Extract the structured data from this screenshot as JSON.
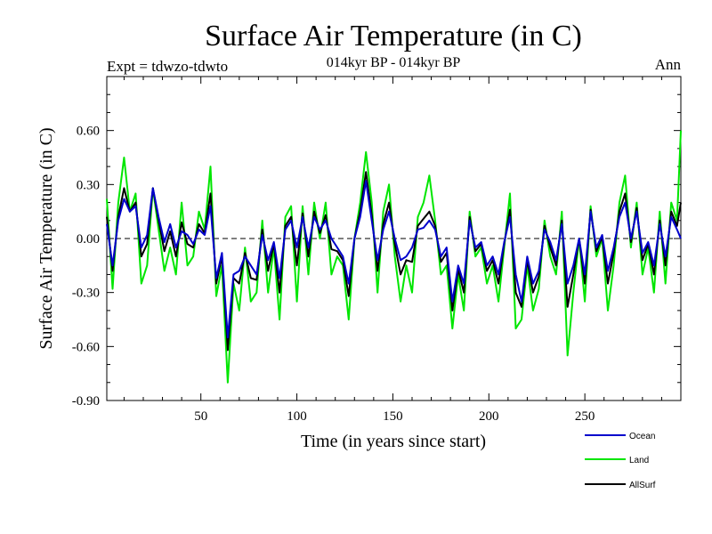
{
  "chart_data": {
    "type": "line",
    "title": "Surface Air Temperature (in C)",
    "subtitle": "014kyr BP - 014kyr BP",
    "top_left_label": "Expt = tdwzo-tdwto",
    "top_right_label": "Ann",
    "xlabel": "Time (in years since start)",
    "ylabel": "Surface Air Temperature (in C)",
    "xlim": [
      1,
      300
    ],
    "ylim": [
      -0.9,
      0.9
    ],
    "x_ticks": [
      50,
      100,
      150,
      200,
      250
    ],
    "x_tick_labels": [
      "50",
      "100",
      "150",
      "200",
      "250"
    ],
    "y_ticks": [
      -0.9,
      -0.6,
      -0.3,
      0.0,
      0.3,
      0.6
    ],
    "y_tick_labels": [
      "-0.90",
      "-0.60",
      "-0.30",
      "0.00",
      "0.30",
      "0.60"
    ],
    "zero_line": true,
    "grid": false,
    "legend_position": "bottom-right",
    "x": [
      1,
      4,
      7,
      10,
      13,
      16,
      19,
      22,
      25,
      28,
      31,
      34,
      37,
      40,
      43,
      46,
      49,
      52,
      55,
      58,
      61,
      64,
      67,
      70,
      73,
      76,
      79,
      82,
      85,
      88,
      91,
      94,
      97,
      100,
      103,
      106,
      109,
      112,
      115,
      118,
      121,
      124,
      127,
      130,
      133,
      136,
      139,
      142,
      145,
      148,
      151,
      154,
      157,
      160,
      163,
      166,
      169,
      172,
      175,
      178,
      181,
      184,
      187,
      190,
      193,
      196,
      199,
      202,
      205,
      208,
      211,
      214,
      217,
      220,
      223,
      226,
      229,
      232,
      235,
      238,
      241,
      244,
      247,
      250,
      253,
      256,
      259,
      262,
      265,
      268,
      271,
      274,
      277,
      280,
      283,
      286,
      289,
      292,
      295,
      298,
      300
    ],
    "series": [
      {
        "name": "Ocean",
        "color": "#0000cc",
        "values": [
          0.08,
          -0.15,
          0.1,
          0.22,
          0.15,
          0.18,
          -0.05,
          0.02,
          0.28,
          0.12,
          -0.02,
          0.08,
          -0.05,
          0.04,
          0.02,
          -0.03,
          0.05,
          0.02,
          0.18,
          -0.22,
          -0.08,
          -0.55,
          -0.2,
          -0.18,
          -0.1,
          -0.15,
          -0.2,
          0.02,
          -0.12,
          -0.02,
          -0.22,
          0.05,
          0.1,
          -0.05,
          0.12,
          -0.05,
          0.12,
          0.05,
          0.1,
          0.0,
          -0.05,
          -0.1,
          -0.25,
          0.0,
          0.12,
          0.32,
          0.1,
          -0.12,
          0.05,
          0.15,
          0.0,
          -0.12,
          -0.1,
          -0.05,
          0.05,
          0.06,
          0.1,
          0.05,
          -0.1,
          -0.05,
          -0.35,
          -0.15,
          -0.25,
          0.1,
          -0.05,
          -0.02,
          -0.15,
          -0.1,
          -0.2,
          -0.02,
          0.12,
          -0.2,
          -0.35,
          -0.1,
          -0.25,
          -0.18,
          0.05,
          -0.02,
          -0.12,
          0.08,
          -0.25,
          -0.15,
          0.0,
          -0.2,
          0.15,
          -0.05,
          0.02,
          -0.18,
          -0.05,
          0.12,
          0.2,
          0.0,
          0.15,
          -0.08,
          -0.02,
          -0.15,
          0.08,
          -0.1,
          0.12,
          0.05,
          0.0
        ]
      },
      {
        "name": "Land",
        "color": "#00e600",
        "values": [
          0.22,
          -0.28,
          0.2,
          0.45,
          0.15,
          0.25,
          -0.25,
          -0.15,
          0.28,
          0.05,
          -0.18,
          -0.05,
          -0.2,
          0.2,
          -0.15,
          -0.1,
          0.15,
          0.05,
          0.4,
          -0.32,
          -0.15,
          -0.8,
          -0.25,
          -0.4,
          -0.05,
          -0.35,
          -0.3,
          0.1,
          -0.3,
          -0.05,
          -0.45,
          0.12,
          0.18,
          -0.35,
          0.18,
          -0.2,
          0.2,
          0.0,
          0.2,
          -0.2,
          -0.1,
          -0.15,
          -0.45,
          0.0,
          0.2,
          0.48,
          0.2,
          -0.3,
          0.15,
          0.3,
          -0.1,
          -0.35,
          -0.15,
          -0.3,
          0.12,
          0.2,
          0.35,
          0.1,
          -0.2,
          -0.15,
          -0.5,
          -0.2,
          -0.4,
          0.15,
          -0.1,
          -0.05,
          -0.25,
          -0.15,
          -0.35,
          -0.05,
          0.25,
          -0.5,
          -0.45,
          -0.15,
          -0.4,
          -0.28,
          0.1,
          -0.1,
          -0.2,
          0.15,
          -0.65,
          -0.3,
          0.0,
          -0.35,
          0.18,
          -0.1,
          0.0,
          -0.4,
          -0.15,
          0.2,
          0.35,
          -0.05,
          0.2,
          -0.2,
          -0.05,
          -0.3,
          0.15,
          -0.25,
          0.2,
          0.1,
          0.6
        ]
      },
      {
        "name": "AllSurf",
        "color": "#000000",
        "values": [
          0.12,
          -0.18,
          0.12,
          0.28,
          0.15,
          0.2,
          -0.1,
          -0.03,
          0.28,
          0.1,
          -0.07,
          0.04,
          -0.1,
          0.09,
          -0.03,
          -0.05,
          0.08,
          0.03,
          0.25,
          -0.25,
          -0.1,
          -0.62,
          -0.22,
          -0.25,
          -0.08,
          -0.22,
          -0.23,
          0.05,
          -0.18,
          -0.03,
          -0.3,
          0.07,
          0.12,
          -0.15,
          0.14,
          -0.1,
          0.15,
          0.03,
          0.13,
          -0.06,
          -0.07,
          -0.12,
          -0.32,
          0.0,
          0.15,
          0.37,
          0.13,
          -0.18,
          0.08,
          0.2,
          -0.03,
          -0.2,
          -0.12,
          -0.13,
          0.07,
          0.11,
          0.15,
          0.07,
          -0.13,
          -0.08,
          -0.4,
          -0.17,
          -0.3,
          0.12,
          -0.07,
          -0.03,
          -0.18,
          -0.12,
          -0.25,
          -0.03,
          0.16,
          -0.3,
          -0.38,
          -0.12,
          -0.3,
          -0.21,
          0.07,
          -0.05,
          -0.15,
          0.1,
          -0.38,
          -0.2,
          0.0,
          -0.25,
          0.16,
          -0.07,
          0.01,
          -0.25,
          -0.08,
          0.15,
          0.25,
          -0.02,
          0.17,
          -0.12,
          -0.03,
          -0.2,
          0.1,
          -0.15,
          0.15,
          0.07,
          0.2
        ]
      }
    ]
  }
}
